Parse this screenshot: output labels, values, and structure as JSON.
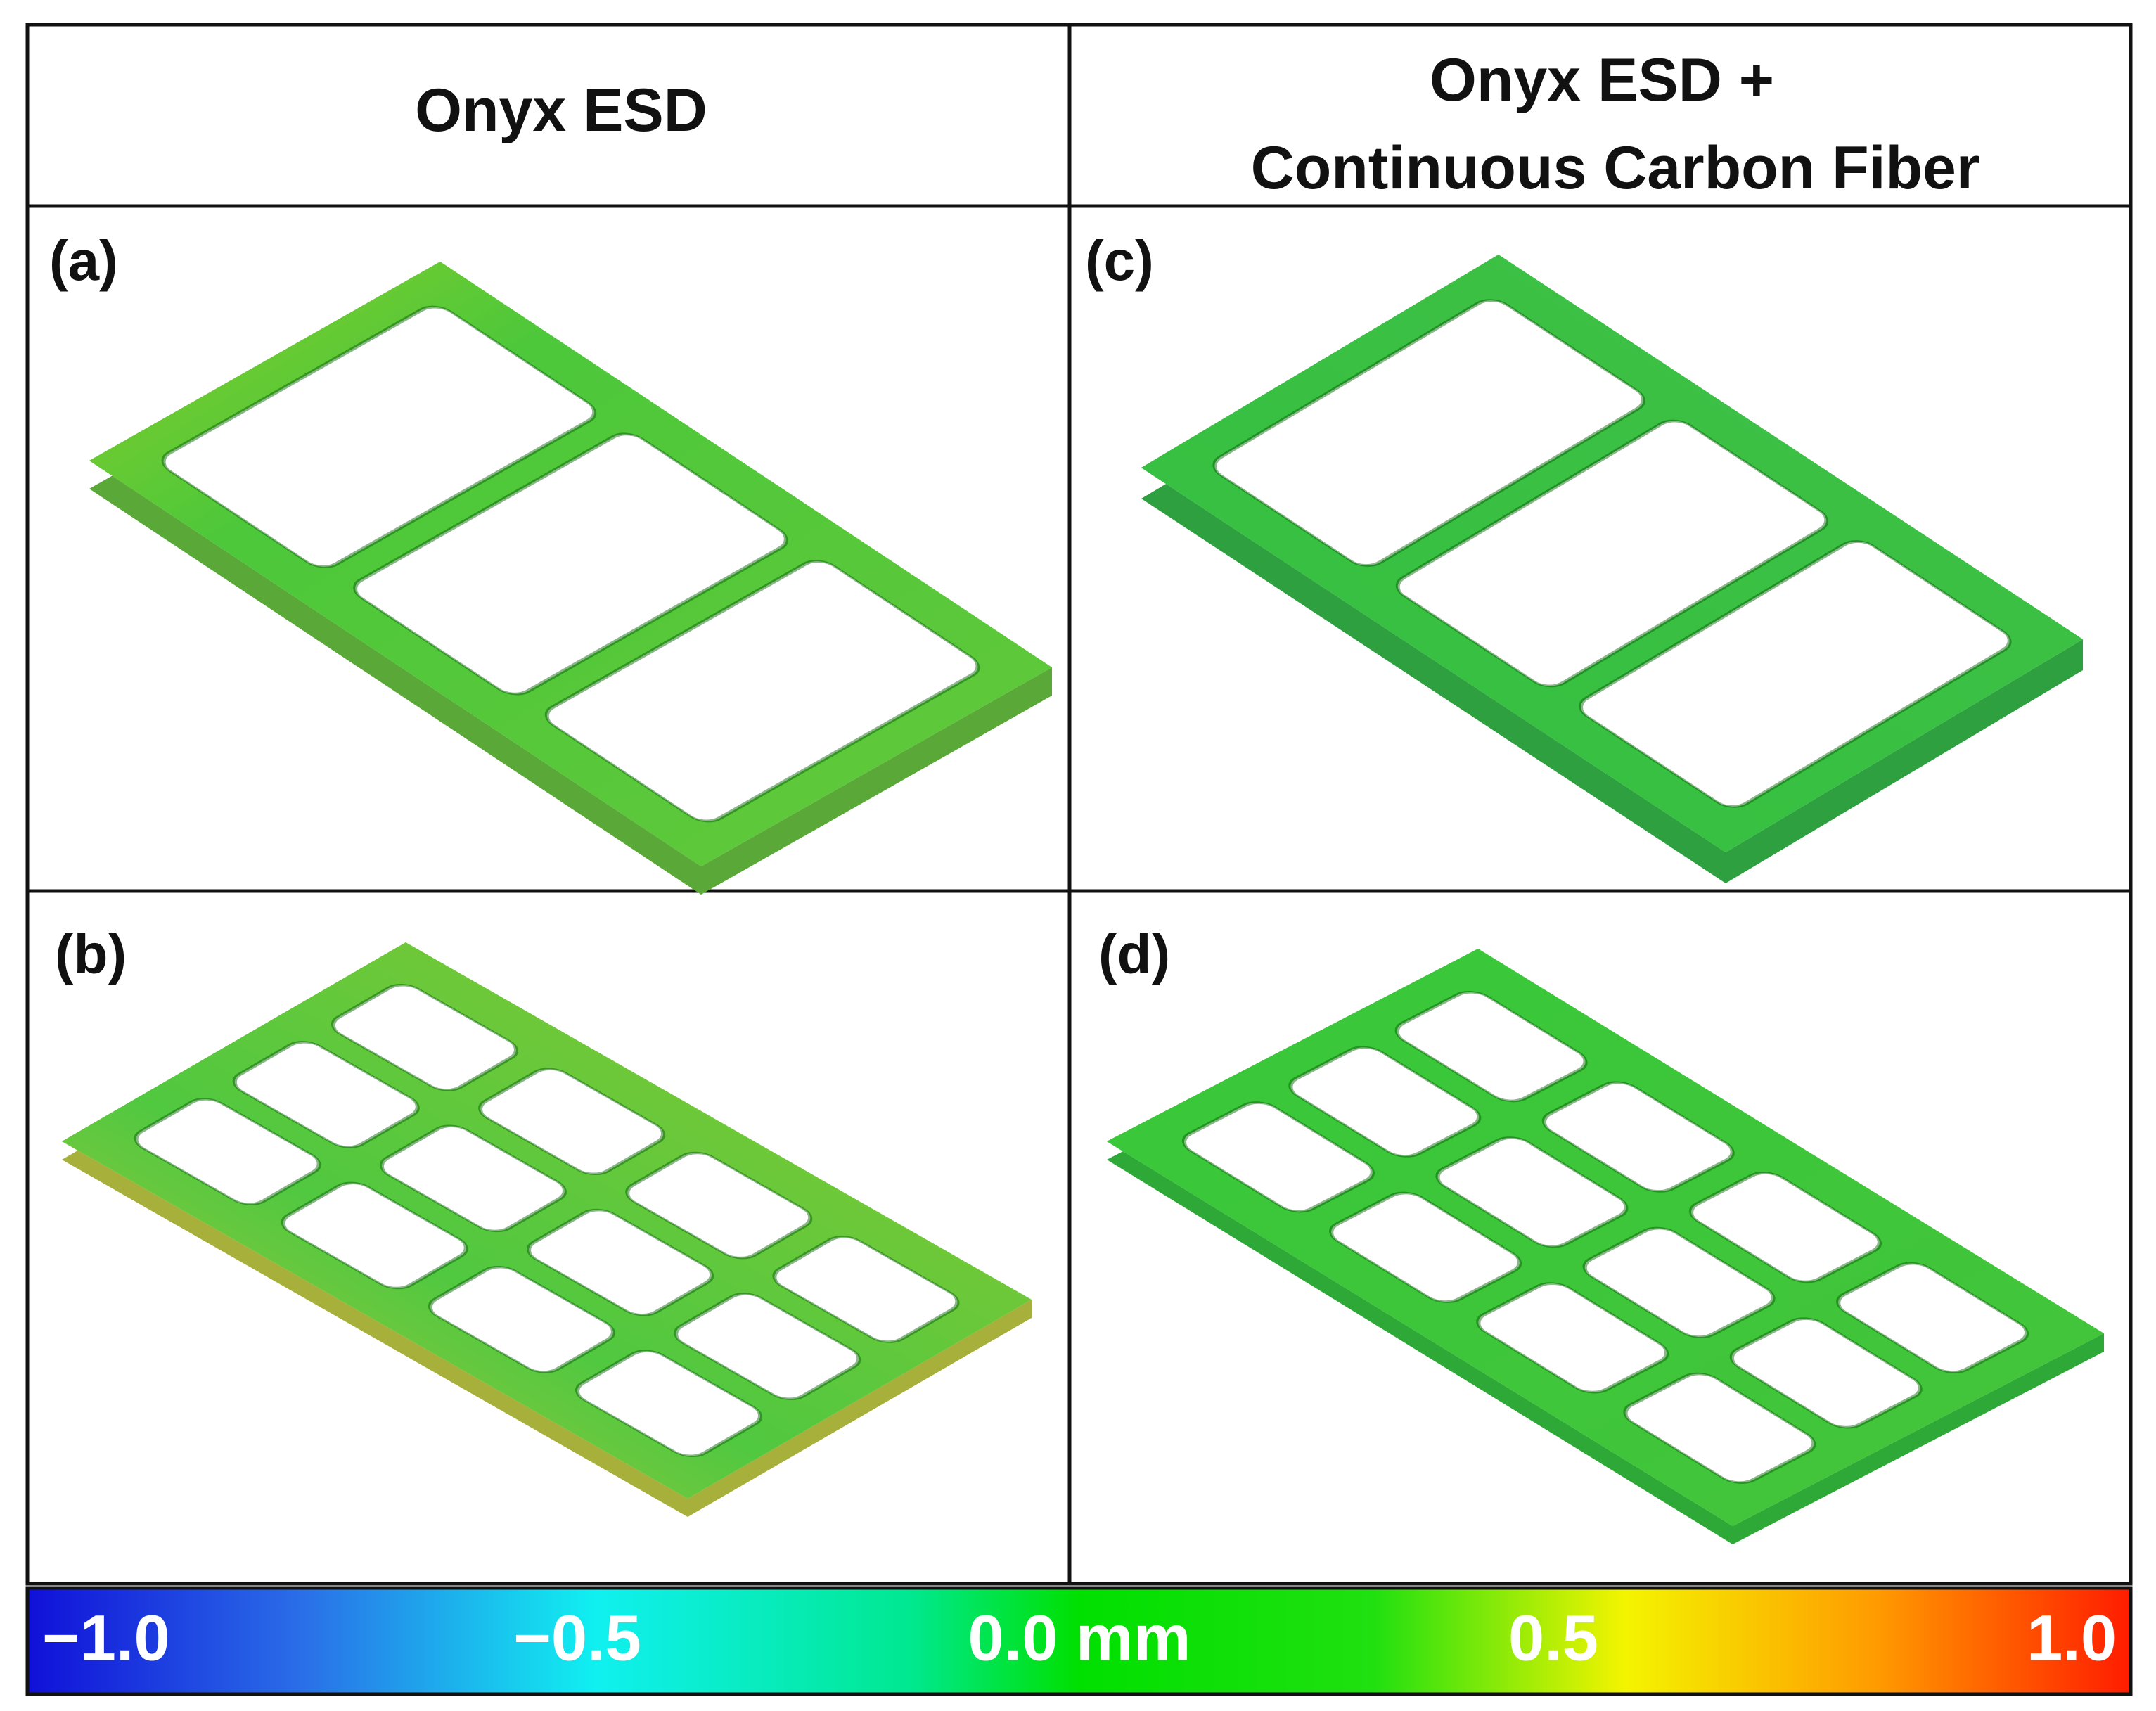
{
  "header": {
    "left": "Onyx ESD",
    "right": [
      "Onyx ESD +",
      "Continuous Carbon Fiber"
    ]
  },
  "panels": [
    "(a)",
    "(b)",
    "(c)",
    "(d)"
  ],
  "colorbar": {
    "labels": [
      "−1.0",
      "−0.5",
      "0.0 mm",
      "0.5",
      "1.0"
    ]
  }
}
